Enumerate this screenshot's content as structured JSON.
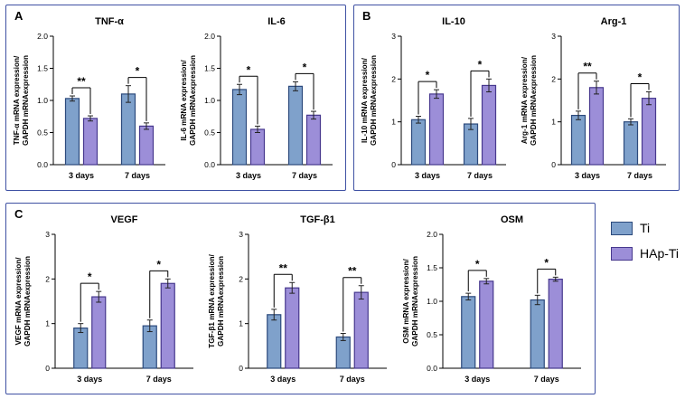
{
  "figure": {
    "panels": [
      {
        "id": "A",
        "label": "A"
      },
      {
        "id": "B",
        "label": "B"
      },
      {
        "id": "C",
        "label": "C"
      }
    ],
    "legend": {
      "items": [
        {
          "label": "Ti",
          "color": "#7fa1cb",
          "border": "#2c4a7c"
        },
        {
          "label": "HAp-Ti",
          "color": "#9c8ed8",
          "border": "#47388e"
        }
      ]
    }
  },
  "style": {
    "series_fills": [
      "#7fa1cb",
      "#9c8ed8"
    ],
    "series_strokes": [
      "#2c4a7c",
      "#47388e"
    ],
    "error_color": "#222222",
    "axis_color": "#000000",
    "panel_border": "#3f51a3"
  },
  "chart_data": [
    {
      "id": "tnf",
      "panel": "A",
      "type": "bar",
      "title": "TNF-α",
      "ylabel": [
        "TNF-α mRNA expression/",
        "GAPDH mRNAexpression"
      ],
      "categories": [
        "3 days",
        "7 days"
      ],
      "series": [
        {
          "name": "Ti",
          "values": [
            1.03,
            1.1
          ],
          "errors": [
            0.04,
            0.13
          ]
        },
        {
          "name": "HAp-Ti",
          "values": [
            0.72,
            0.6
          ],
          "errors": [
            0.04,
            0.05
          ]
        }
      ],
      "ylim": [
        0,
        2.0
      ],
      "yticks": [
        "0.0",
        "0.5",
        "1.0",
        "1.5",
        "2.0"
      ],
      "significance": [
        "**",
        "*"
      ]
    },
    {
      "id": "il6",
      "panel": "A",
      "type": "bar",
      "title": "IL-6",
      "ylabel": [
        "IL-6 mRNA expression/",
        "GAPDH mRNAexpression"
      ],
      "categories": [
        "3 days",
        "7 days"
      ],
      "series": [
        {
          "name": "Ti",
          "values": [
            1.17,
            1.22
          ],
          "errors": [
            0.08,
            0.07
          ]
        },
        {
          "name": "HAp-Ti",
          "values": [
            0.55,
            0.77
          ],
          "errors": [
            0.05,
            0.06
          ]
        }
      ],
      "ylim": [
        0,
        2.0
      ],
      "yticks": [
        "0.0",
        "0.5",
        "1.0",
        "1.5",
        "2.0"
      ],
      "significance": [
        "*",
        "*"
      ]
    },
    {
      "id": "il10",
      "panel": "B",
      "type": "bar",
      "title": "IL-10",
      "ylabel": [
        "IL-10 mRNA expression/",
        "GAPDH mRNAexpression"
      ],
      "categories": [
        "3 days",
        "7 days"
      ],
      "series": [
        {
          "name": "Ti",
          "values": [
            1.05,
            0.95
          ],
          "errors": [
            0.08,
            0.13
          ]
        },
        {
          "name": "HAp-Ti",
          "values": [
            1.65,
            1.85
          ],
          "errors": [
            0.1,
            0.15
          ]
        }
      ],
      "ylim": [
        0,
        3
      ],
      "yticks": [
        "0",
        "1",
        "2",
        "3"
      ],
      "significance": [
        "*",
        "*"
      ]
    },
    {
      "id": "arg1",
      "panel": "B",
      "type": "bar",
      "title": "Arg-1",
      "ylabel": [
        "Arg-1 mRNA expression/",
        "GAPDH mRNAexpression"
      ],
      "categories": [
        "3 days",
        "7 days"
      ],
      "series": [
        {
          "name": "Ti",
          "values": [
            1.15,
            1.0
          ],
          "errors": [
            0.1,
            0.07
          ]
        },
        {
          "name": "HAp-Ti",
          "values": [
            1.8,
            1.55
          ],
          "errors": [
            0.15,
            0.15
          ]
        }
      ],
      "ylim": [
        0,
        3
      ],
      "yticks": [
        "0",
        "1",
        "2",
        "3"
      ],
      "significance": [
        "**",
        "*"
      ]
    },
    {
      "id": "vegf",
      "panel": "C",
      "type": "bar",
      "title": "VEGF",
      "ylabel": [
        "VEGF mRNA expression/",
        "GAPDH mRNAexpression"
      ],
      "categories": [
        "3 days",
        "7 days"
      ],
      "series": [
        {
          "name": "Ti",
          "values": [
            0.9,
            0.95
          ],
          "errors": [
            0.1,
            0.13
          ]
        },
        {
          "name": "HAp-Ti",
          "values": [
            1.6,
            1.9
          ],
          "errors": [
            0.12,
            0.1
          ]
        }
      ],
      "ylim": [
        0,
        3
      ],
      "yticks": [
        "0",
        "1",
        "2",
        "3"
      ],
      "significance": [
        "*",
        "*"
      ]
    },
    {
      "id": "tgfb1",
      "panel": "C",
      "type": "bar",
      "title": "TGF-β1",
      "ylabel": [
        "TGF-β1 mRNA expression/",
        "GAPDH mRNAexpression"
      ],
      "categories": [
        "3 days",
        "7 days"
      ],
      "series": [
        {
          "name": "Ti",
          "values": [
            1.2,
            0.7
          ],
          "errors": [
            0.12,
            0.08
          ]
        },
        {
          "name": "HAp-Ti",
          "values": [
            1.8,
            1.7
          ],
          "errors": [
            0.12,
            0.15
          ]
        }
      ],
      "ylim": [
        0,
        3
      ],
      "yticks": [
        "0",
        "1",
        "2",
        "3"
      ],
      "significance": [
        "**",
        "**"
      ]
    },
    {
      "id": "osm",
      "panel": "C",
      "type": "bar",
      "title": "OSM",
      "ylabel": [
        "OSM mRNA expression/",
        "GAPDH mRNAexpression"
      ],
      "categories": [
        "3 days",
        "7 days"
      ],
      "series": [
        {
          "name": "Ti",
          "values": [
            1.07,
            1.02
          ],
          "errors": [
            0.05,
            0.07
          ]
        },
        {
          "name": "HAp-Ti",
          "values": [
            1.3,
            1.33
          ],
          "errors": [
            0.04,
            0.03
          ]
        }
      ],
      "ylim": [
        0,
        2.0
      ],
      "yticks": [
        "0.0",
        "0.5",
        "1.0",
        "1.5",
        "2.0"
      ],
      "significance": [
        "*",
        "*"
      ]
    }
  ]
}
